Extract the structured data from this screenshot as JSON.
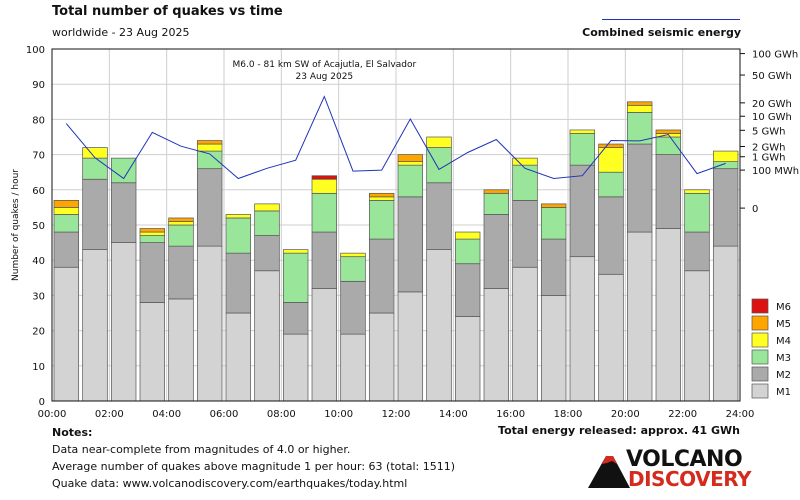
{
  "header": {
    "title": "Total number of quakes vs time",
    "subtitle": "worldwide - 23 Aug 2025",
    "energy_legend": "Combined seismic energy"
  },
  "footer": {
    "notes_title": "Notes:",
    "note_1": "Data near-complete from magnitudes of 4.0 or higher.",
    "note_2": "Average number of quakes above magnitude 1 per hour: 63 (total: 1511)",
    "note_3": "Quake data: www.volcanodiscovery.com/earthquakes/today.html",
    "energy_total": "Total energy released: approx. 41 GWh",
    "logo_top": "VOLCANO",
    "logo_bottom": "DISCOVERY"
  },
  "chart_data": {
    "type": "bar",
    "stacked": true,
    "categories": [
      "00:00",
      "01:00",
      "02:00",
      "03:00",
      "04:00",
      "05:00",
      "06:00",
      "07:00",
      "08:00",
      "09:00",
      "10:00",
      "11:00",
      "12:00",
      "13:00",
      "14:00",
      "15:00",
      "16:00",
      "17:00",
      "18:00",
      "19:00",
      "20:00",
      "21:00",
      "22:00",
      "23:00"
    ],
    "x_ticks": [
      "00:00",
      "02:00",
      "04:00",
      "06:00",
      "08:00",
      "10:00",
      "12:00",
      "14:00",
      "16:00",
      "18:00",
      "20:00",
      "22:00",
      "24:00"
    ],
    "ylabel": "Number of quakes / hour",
    "ylim": [
      0,
      100
    ],
    "y_ticks": [
      0,
      10,
      20,
      30,
      40,
      50,
      60,
      70,
      80,
      90,
      100
    ],
    "grid": true,
    "series": [
      {
        "name": "M1",
        "color": "#d3d3d3",
        "values": [
          38,
          43,
          45,
          28,
          29,
          44,
          25,
          37,
          19,
          32,
          19,
          25,
          31,
          43,
          24,
          32,
          38,
          30,
          41,
          36,
          48,
          49,
          37,
          44
        ]
      },
      {
        "name": "M2",
        "color": "#aaaaaa",
        "values": [
          10,
          20,
          17,
          17,
          15,
          22,
          17,
          10,
          9,
          16,
          15,
          21,
          27,
          19,
          15,
          21,
          19,
          16,
          26,
          22,
          25,
          21,
          11,
          22
        ]
      },
      {
        "name": "M3",
        "color": "#99e599",
        "values": [
          5,
          6,
          7,
          2,
          6,
          5,
          10,
          7,
          14,
          11,
          7,
          11,
          9,
          10,
          7,
          6,
          10,
          9,
          9,
          7,
          9,
          5,
          11,
          2
        ]
      },
      {
        "name": "M4",
        "color": "#ffff22",
        "values": [
          2,
          3,
          0,
          1,
          1,
          2,
          1,
          2,
          1,
          4,
          1,
          1,
          1,
          3,
          2,
          0,
          2,
          0,
          1,
          7,
          2,
          1,
          1,
          3
        ]
      },
      {
        "name": "M5",
        "color": "#ffa500",
        "values": [
          2,
          0,
          0,
          1,
          1,
          1,
          0,
          0,
          0,
          0,
          0,
          1,
          2,
          0,
          0,
          1,
          0,
          1,
          0,
          1,
          1,
          1,
          0,
          0
        ]
      },
      {
        "name": "M6",
        "color": "#dd1111",
        "values": [
          0,
          0,
          0,
          0,
          0,
          0,
          0,
          0,
          0,
          1,
          0,
          0,
          0,
          0,
          0,
          0,
          0,
          0,
          0,
          0,
          0,
          0,
          0,
          0
        ]
      }
    ],
    "energy_line": {
      "name": "Combined seismic energy",
      "color": "#2233bb",
      "axis_labels": [
        "100 GWh",
        "50 GWh",
        "20 GWh",
        "10 GWh",
        "5 GWh",
        "2 GWh",
        "1 GWh",
        "100 MWh",
        "0"
      ],
      "axis_levels": [
        98.7,
        92.6,
        84.7,
        80.9,
        76.9,
        72.3,
        69.4,
        65.6,
        54.8
      ],
      "x_hours": [
        0.5,
        1.5,
        2.5,
        3.5,
        4.5,
        5.5,
        6.5,
        7.5,
        8.5,
        9.5,
        10.5,
        11.5,
        12.5,
        13.5,
        14.5,
        15.5,
        16.5,
        17.5,
        18.5,
        19.5,
        20.5,
        21.5,
        22.5,
        23.5
      ],
      "values": [
        78.8,
        69.1,
        63.2,
        76.3,
        72.4,
        70.2,
        63.2,
        66.1,
        68.4,
        86.5,
        65.3,
        65.6,
        80.1,
        65.8,
        70.6,
        74.3,
        66.1,
        63.2,
        64.0,
        74.0,
        73.9,
        75.7,
        64.6,
        67.5
      ]
    },
    "annotation": {
      "line1": "M6.0 - 81 km SW of Acajutla, El Salvador",
      "line2": "23 Aug 2025",
      "x_hour": 9.5,
      "y": 86.5
    }
  }
}
